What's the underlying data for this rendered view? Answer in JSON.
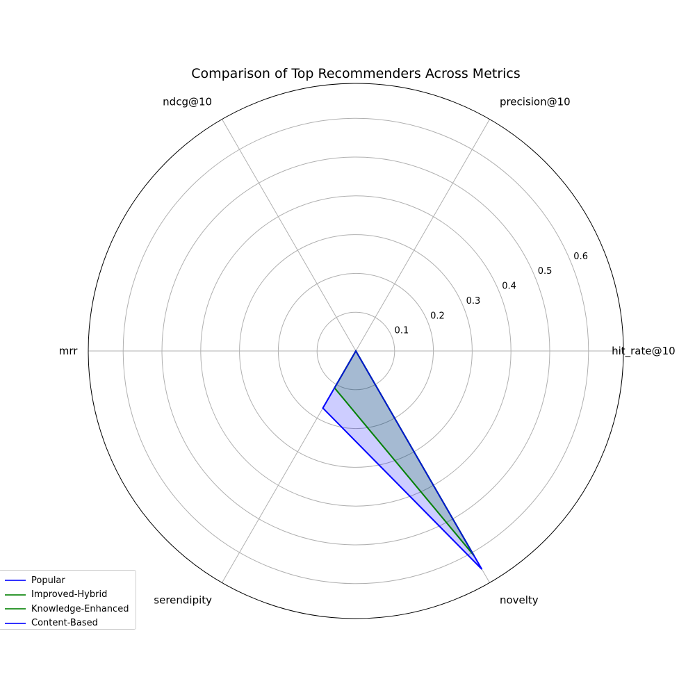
{
  "chart_data": {
    "type": "radar",
    "title": "Comparison of Top Recommenders Across Metrics",
    "axes": [
      "hit_rate@10",
      "precision@10",
      "ndcg@10",
      "mrr",
      "serendipity",
      "novelty"
    ],
    "rlim": [
      0,
      0.69
    ],
    "rticks": [
      0.1,
      0.2,
      0.3,
      0.4,
      0.5,
      0.6
    ],
    "rtick_labels": [
      "0.1",
      "0.2",
      "0.3",
      "0.4",
      "0.5",
      "0.6"
    ],
    "grid": true,
    "legend_position": "lower-left",
    "series": [
      {
        "name": "Popular",
        "color": "#0000ff",
        "values": [
          0.0,
          0.0,
          0.0,
          0.0,
          0.17,
          0.65
        ]
      },
      {
        "name": "Improved-Hybrid",
        "color": "#008000",
        "values": [
          0.0,
          0.0,
          0.0,
          0.0,
          0.11,
          0.61
        ]
      },
      {
        "name": "Knowledge-Enhanced",
        "color": "#008000",
        "values": [
          0.0,
          0.0,
          0.0,
          0.0,
          0.11,
          0.61
        ]
      },
      {
        "name": "Content-Based",
        "color": "#0000ff",
        "values": [
          0.0,
          0.0,
          0.0,
          0.0,
          0.17,
          0.65
        ]
      }
    ]
  }
}
